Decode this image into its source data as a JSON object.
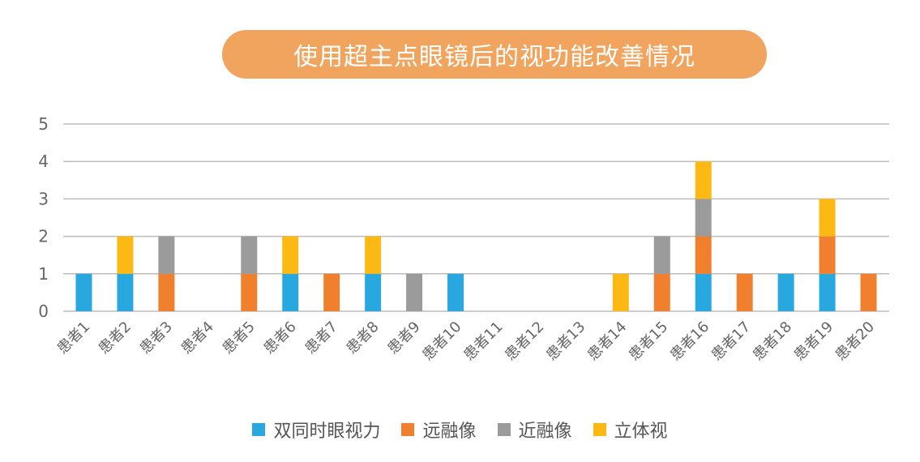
{
  "chart_data": {
    "type": "bar",
    "stacked": true,
    "title": "使用超主点眼镜后的视功能改善情况",
    "categories": [
      "患者1",
      "患者2",
      "患者3",
      "患者4",
      "患者5",
      "患者6",
      "患者7",
      "患者8",
      "患者9",
      "患者10",
      "患者11",
      "患者12",
      "患者13",
      "患者14",
      "患者15",
      "患者16",
      "患者17",
      "患者18",
      "患者19",
      "患者20"
    ],
    "series": [
      {
        "name": "双同时眼视力",
        "color": "#29A8E0",
        "values": [
          1,
          1,
          0,
          0,
          0,
          1,
          0,
          1,
          0,
          1,
          0,
          0,
          0,
          0,
          0,
          1,
          0,
          1,
          1,
          0
        ]
      },
      {
        "name": "远融像",
        "color": "#F0802E",
        "values": [
          0,
          0,
          1,
          0,
          1,
          0,
          1,
          0,
          0,
          0,
          0,
          0,
          0,
          0,
          1,
          1,
          1,
          0,
          1,
          1
        ]
      },
      {
        "name": "近融像",
        "color": "#9B9B9C",
        "values": [
          0,
          0,
          1,
          0,
          1,
          0,
          0,
          0,
          1,
          0,
          0,
          0,
          0,
          0,
          1,
          1,
          0,
          0,
          0,
          0
        ]
      },
      {
        "name": "立体视",
        "color": "#FDB913",
        "values": [
          0,
          1,
          0,
          0,
          0,
          1,
          0,
          1,
          0,
          0,
          0,
          0,
          0,
          1,
          0,
          1,
          0,
          0,
          1,
          0
        ]
      }
    ],
    "ylim": [
      0,
      5
    ],
    "yticks": [
      "0",
      "1",
      "2",
      "3",
      "4",
      "5"
    ],
    "grid": true,
    "legend_position": "bottom"
  }
}
